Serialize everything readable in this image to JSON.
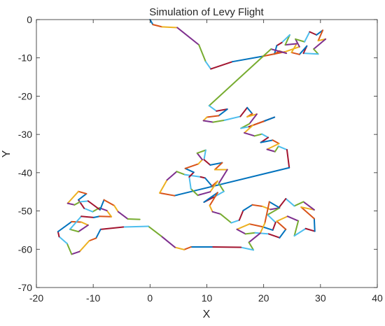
{
  "chart_data": {
    "type": "line",
    "title": "Simulation of Levy Flight",
    "xlabel": "X",
    "ylabel": "Y",
    "xlim": [
      -20,
      40
    ],
    "ylim": [
      -70,
      0
    ],
    "xticks": [
      -20,
      -10,
      0,
      10,
      20,
      30,
      40
    ],
    "yticks": [
      0,
      -10,
      -20,
      -30,
      -40,
      -50,
      -60,
      -70
    ],
    "xtick_labels": [
      "-20",
      "-10",
      "0",
      "10",
      "20",
      "30",
      "40"
    ],
    "ytick_labels": [
      "0",
      "-10",
      "-20",
      "-30",
      "-40",
      "-50",
      "-60",
      "-70"
    ],
    "grid": false,
    "legend": false,
    "color_cycle": [
      "#0072BD",
      "#D95319",
      "#EDB120",
      "#7E2F8E",
      "#77AC30",
      "#4DBEEE",
      "#A2142F"
    ],
    "points": [
      [
        0.0,
        0.0
      ],
      [
        0.5,
        -1.3
      ],
      [
        2.1,
        -1.9
      ],
      [
        4.8,
        -2.1
      ],
      [
        8.6,
        -6.6
      ],
      [
        9.8,
        -11.0
      ],
      [
        10.7,
        -12.9
      ],
      [
        14.5,
        -11.0
      ],
      [
        19.8,
        -9.6
      ],
      [
        23.8,
        -8.4
      ],
      [
        26.3,
        -7.1
      ],
      [
        25.6,
        -5.1
      ],
      [
        27.2,
        -5.8
      ],
      [
        28.1,
        -3.2
      ],
      [
        29.3,
        -4.0
      ],
      [
        30.4,
        -2.8
      ],
      [
        29.6,
        -5.5
      ],
      [
        30.9,
        -5.1
      ],
      [
        28.8,
        -7.7
      ],
      [
        29.6,
        -9.0
      ],
      [
        27.0,
        -8.8
      ],
      [
        27.6,
        -6.9
      ],
      [
        26.3,
        -9.1
      ],
      [
        24.9,
        -8.6
      ],
      [
        25.8,
        -6.3
      ],
      [
        23.8,
        -6.6
      ],
      [
        24.6,
        -4.0
      ],
      [
        23.2,
        -6.0
      ],
      [
        22.3,
        -6.8
      ],
      [
        21.9,
        -9.0
      ],
      [
        22.8,
        -8.2
      ],
      [
        24.0,
        -8.8
      ],
      [
        21.3,
        -7.7
      ],
      [
        10.4,
        -22.5
      ],
      [
        11.7,
        -23.9
      ],
      [
        13.6,
        -23.4
      ],
      [
        12.1,
        -25.1
      ],
      [
        10.0,
        -25.5
      ],
      [
        9.4,
        -26.4
      ],
      [
        11.1,
        -26.8
      ],
      [
        13.1,
        -26.3
      ],
      [
        15.9,
        -25.3
      ],
      [
        17.1,
        -23.0
      ],
      [
        18.0,
        -24.6
      ],
      [
        17.1,
        -25.4
      ],
      [
        18.8,
        -24.7
      ],
      [
        17.5,
        -27.2
      ],
      [
        16.0,
        -28.4
      ],
      [
        17.4,
        -28.0
      ],
      [
        21.9,
        -25.5
      ],
      [
        20.0,
        -26.6
      ],
      [
        18.1,
        -27.6
      ],
      [
        16.6,
        -29.6
      ],
      [
        18.4,
        -30.4
      ],
      [
        19.7,
        -29.9
      ],
      [
        20.8,
        -30.8
      ],
      [
        19.5,
        -32.1
      ],
      [
        21.6,
        -31.5
      ],
      [
        22.7,
        -32.4
      ],
      [
        20.6,
        -33.9
      ],
      [
        22.0,
        -34.5
      ],
      [
        22.6,
        -33.1
      ],
      [
        24.1,
        -34.0
      ],
      [
        24.5,
        -38.7
      ],
      [
        4.3,
        -46.0
      ],
      [
        1.7,
        -45.3
      ],
      [
        3.0,
        -41.9
      ],
      [
        4.7,
        -39.7
      ],
      [
        6.1,
        -40.5
      ],
      [
        8.9,
        -41.1
      ],
      [
        9.7,
        -41.4
      ],
      [
        10.9,
        -43.5
      ],
      [
        11.9,
        -42.2
      ],
      [
        10.6,
        -45.0
      ],
      [
        8.4,
        -45.9
      ],
      [
        7.2,
        -44.2
      ],
      [
        6.9,
        -41.1
      ],
      [
        7.7,
        -39.9
      ],
      [
        6.2,
        -38.9
      ],
      [
        8.5,
        -37.7
      ],
      [
        9.2,
        -36.6
      ],
      [
        8.3,
        -34.9
      ],
      [
        9.8,
        -34.1
      ],
      [
        9.5,
        -36.6
      ],
      [
        10.6,
        -38.0
      ],
      [
        12.7,
        -37.4
      ],
      [
        11.4,
        -39.2
      ],
      [
        13.6,
        -39.2
      ],
      [
        12.1,
        -42.8
      ],
      [
        13.0,
        -44.9
      ],
      [
        11.2,
        -46.4
      ],
      [
        9.5,
        -47.7
      ],
      [
        11.9,
        -45.2
      ],
      [
        10.5,
        -48.6
      ],
      [
        11.0,
        -50.2
      ],
      [
        12.4,
        -50.8
      ],
      [
        14.3,
        -53.1
      ],
      [
        15.7,
        -52.4
      ],
      [
        16.4,
        -49.9
      ],
      [
        18.0,
        -48.4
      ],
      [
        19.8,
        -48.8
      ],
      [
        21.2,
        -49.6
      ],
      [
        22.8,
        -49.2
      ],
      [
        20.7,
        -51.0
      ],
      [
        22.1,
        -53.0
      ],
      [
        21.6,
        -55.0
      ],
      [
        19.7,
        -54.1
      ],
      [
        17.5,
        -53.4
      ],
      [
        15.3,
        -54.8
      ],
      [
        16.8,
        -56.0
      ],
      [
        18.5,
        -55.7
      ],
      [
        20.9,
        -56.0
      ],
      [
        22.8,
        -57.0
      ],
      [
        23.9,
        -54.8
      ],
      [
        22.3,
        -52.7
      ],
      [
        24.2,
        -51.4
      ],
      [
        26.1,
        -52.6
      ],
      [
        25.4,
        -56.5
      ],
      [
        27.4,
        -54.6
      ],
      [
        29.0,
        -55.3
      ],
      [
        28.9,
        -52.0
      ],
      [
        26.6,
        -49.0
      ],
      [
        28.9,
        -49.7
      ],
      [
        27.0,
        -47.6
      ],
      [
        25.4,
        -48.7
      ],
      [
        23.9,
        -46.8
      ],
      [
        22.7,
        -49.1
      ],
      [
        21.0,
        -47.6
      ],
      [
        20.2,
        -53.2
      ],
      [
        19.4,
        -55.8
      ],
      [
        17.4,
        -58.2
      ],
      [
        18.2,
        -60.2
      ],
      [
        16.0,
        -59.5
      ],
      [
        10.9,
        -59.4
      ],
      [
        7.2,
        -59.4
      ],
      [
        6.0,
        -60.1
      ],
      [
        4.4,
        -59.5
      ],
      [
        2.0,
        -56.6
      ],
      [
        -0.3,
        -54.0
      ],
      [
        -4.7,
        -54.2
      ],
      [
        -8.7,
        -54.8
      ],
      [
        -9.5,
        -57.1
      ],
      [
        -10.7,
        -57.8
      ],
      [
        -12.4,
        -60.6
      ],
      [
        -13.8,
        -61.3
      ],
      [
        -14.6,
        -58.5
      ],
      [
        -16.0,
        -56.7
      ],
      [
        -16.2,
        -55.4
      ],
      [
        -13.8,
        -52.8
      ],
      [
        -12.1,
        -52.9
      ],
      [
        -10.9,
        -53.7
      ],
      [
        -12.6,
        -55.4
      ],
      [
        -14.1,
        -54.8
      ],
      [
        -12.1,
        -51.4
      ],
      [
        -9.9,
        -51.7
      ],
      [
        -8.9,
        -51.4
      ],
      [
        -6.8,
        -51.5
      ],
      [
        -7.6,
        -49.9
      ],
      [
        -8.9,
        -49.2
      ],
      [
        -10.1,
        -50.2
      ],
      [
        -11.6,
        -49.3
      ],
      [
        -12.6,
        -47.1
      ],
      [
        -11.2,
        -45.5
      ],
      [
        -12.6,
        -44.9
      ],
      [
        -14.5,
        -48.0
      ],
      [
        -13.3,
        -48.4
      ],
      [
        -12.3,
        -47.6
      ],
      [
        -10.9,
        -47.4
      ],
      [
        -8.8,
        -49.7
      ],
      [
        -8.1,
        -47.1
      ],
      [
        -6.3,
        -48.6
      ],
      [
        -5.6,
        -50.2
      ],
      [
        -3.9,
        -52.1
      ],
      [
        -1.8,
        -52.2
      ]
    ]
  }
}
